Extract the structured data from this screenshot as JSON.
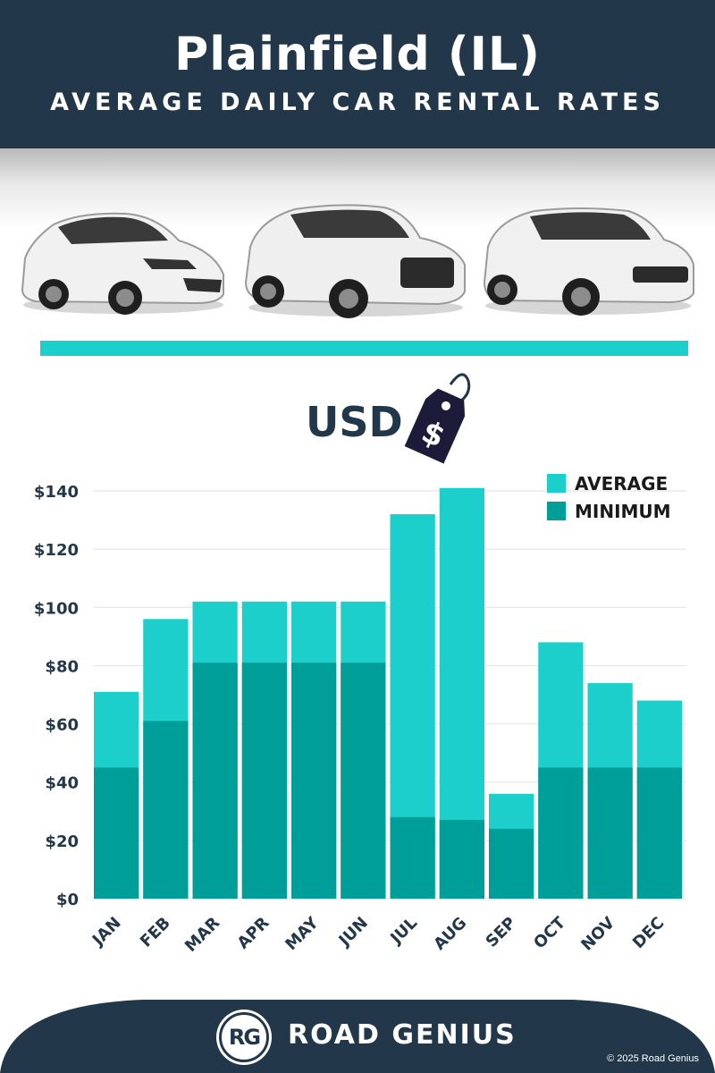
{
  "header": {
    "title": "Plainfield (IL)",
    "subtitle": "AVERAGE DAILY CAR RENTAL RATES"
  },
  "currency_label": "USD",
  "price_tag_symbol": "$",
  "colors": {
    "navy": "#22374a",
    "average": "#1ccfcb",
    "minimum": "#009e99"
  },
  "cars": [
    {
      "icon": "hatchback-car-image"
    },
    {
      "icon": "suv-car-image"
    },
    {
      "icon": "luxury-suv-car-image"
    }
  ],
  "chart_data": {
    "type": "bar",
    "categories": [
      "JAN",
      "FEB",
      "MAR",
      "APR",
      "MAY",
      "JUN",
      "JUL",
      "AUG",
      "SEP",
      "OCT",
      "NOV",
      "DEC"
    ],
    "series": [
      {
        "name": "AVERAGE",
        "values": [
          71,
          96,
          102,
          102,
          102,
          102,
          132,
          141,
          36,
          88,
          74,
          68
        ]
      },
      {
        "name": "MINIMUM",
        "values": [
          45,
          61,
          81,
          81,
          81,
          81,
          28,
          27,
          24,
          45,
          45,
          45
        ]
      }
    ],
    "yticks": [
      "$0",
      "$20",
      "$40",
      "$60",
      "$80",
      "$100",
      "$120",
      "$140"
    ],
    "ylim": [
      0,
      140
    ],
    "grid": true,
    "legend_position": "top-right",
    "overlay": true
  },
  "footer": {
    "logo_initials": "RG",
    "brand": "ROAD GENIUS",
    "copyright": "© 2025 Road Genius"
  }
}
